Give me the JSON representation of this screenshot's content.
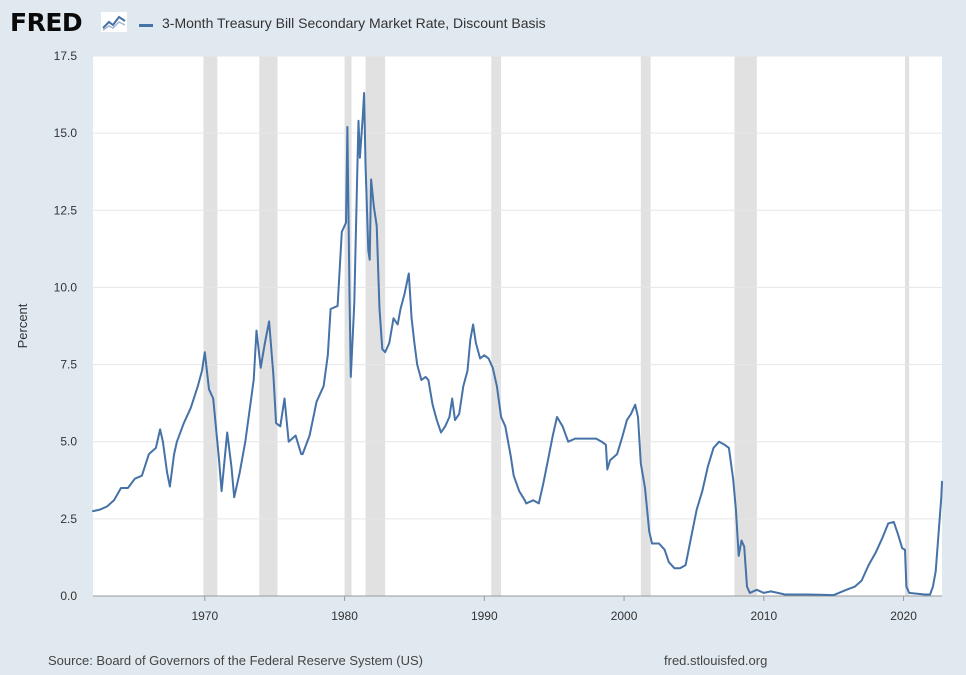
{
  "brand": {
    "logo_text": "FRED"
  },
  "legend": {
    "label": "3-Month Treasury Bill Secondary Market Rate, Discount Basis"
  },
  "footer": {
    "source": "Source: Board of Governors of the Federal Reserve System (US)",
    "url": "fred.stlouisfed.org"
  },
  "colors": {
    "page_background": "#e1e9f0",
    "plot_background": "#ffffff",
    "series": "#4572a7",
    "recession_band": "#e1e1e1",
    "gridline": "#e6e6e6"
  },
  "chart_data": {
    "type": "line",
    "title": "3-Month Treasury Bill Secondary Market Rate, Discount Basis",
    "xlabel": "",
    "ylabel": "Percent",
    "xlim": [
      1962.0,
      2022.75
    ],
    "ylim": [
      0,
      17.5
    ],
    "x_ticks": [
      1970,
      1980,
      1990,
      2000,
      2010,
      2020
    ],
    "y_ticks": [
      0.0,
      2.5,
      5.0,
      7.5,
      10.0,
      12.5,
      15.0,
      17.5
    ],
    "y_tick_labels": [
      "0.0",
      "2.5",
      "5.0",
      "7.5",
      "10.0",
      "12.5",
      "15.0",
      "17.5"
    ],
    "grid": "horizontal",
    "recessions": [
      [
        1969.9,
        1970.9
      ],
      [
        1973.9,
        1975.2
      ],
      [
        1980.0,
        1980.5
      ],
      [
        1981.5,
        1982.9
      ],
      [
        1990.5,
        1991.2
      ],
      [
        2001.2,
        2001.9
      ],
      [
        2007.9,
        2009.5
      ],
      [
        2020.1,
        2020.4
      ]
    ],
    "series": [
      {
        "name": "3-Month Treasury Bill Secondary Market Rate, Discount Basis",
        "points": [
          [
            1962.0,
            2.75
          ],
          [
            1962.5,
            2.8
          ],
          [
            1963.0,
            2.9
          ],
          [
            1963.5,
            3.1
          ],
          [
            1964.0,
            3.5
          ],
          [
            1964.5,
            3.5
          ],
          [
            1965.0,
            3.8
          ],
          [
            1965.5,
            3.9
          ],
          [
            1966.0,
            4.6
          ],
          [
            1966.5,
            4.8
          ],
          [
            1966.8,
            5.4
          ],
          [
            1967.0,
            5.0
          ],
          [
            1967.3,
            4.0
          ],
          [
            1967.5,
            3.55
          ],
          [
            1967.8,
            4.6
          ],
          [
            1968.0,
            5.0
          ],
          [
            1968.5,
            5.6
          ],
          [
            1969.0,
            6.1
          ],
          [
            1969.5,
            6.8
          ],
          [
            1969.8,
            7.3
          ],
          [
            1970.0,
            7.9
          ],
          [
            1970.3,
            6.7
          ],
          [
            1970.6,
            6.4
          ],
          [
            1971.0,
            4.5
          ],
          [
            1971.2,
            3.4
          ],
          [
            1971.6,
            5.3
          ],
          [
            1971.9,
            4.2
          ],
          [
            1972.1,
            3.2
          ],
          [
            1972.5,
            4.0
          ],
          [
            1972.9,
            5.0
          ],
          [
            1973.2,
            6.0
          ],
          [
            1973.5,
            7.0
          ],
          [
            1973.7,
            8.6
          ],
          [
            1974.0,
            7.4
          ],
          [
            1974.3,
            8.2
          ],
          [
            1974.6,
            8.9
          ],
          [
            1974.9,
            7.2
          ],
          [
            1975.1,
            5.6
          ],
          [
            1975.4,
            5.5
          ],
          [
            1975.7,
            6.4
          ],
          [
            1976.0,
            5.0
          ],
          [
            1976.5,
            5.2
          ],
          [
            1976.9,
            4.6
          ],
          [
            1977.0,
            4.6
          ],
          [
            1977.5,
            5.2
          ],
          [
            1978.0,
            6.3
          ],
          [
            1978.5,
            6.8
          ],
          [
            1978.8,
            7.8
          ],
          [
            1979.0,
            9.3
          ],
          [
            1979.5,
            9.4
          ],
          [
            1979.8,
            11.8
          ],
          [
            1980.1,
            12.1
          ],
          [
            1980.2,
            15.2
          ],
          [
            1980.35,
            10.0
          ],
          [
            1980.45,
            7.1
          ],
          [
            1980.7,
            9.5
          ],
          [
            1980.9,
            13.5
          ],
          [
            1981.0,
            15.4
          ],
          [
            1981.1,
            14.2
          ],
          [
            1981.3,
            15.5
          ],
          [
            1981.4,
            16.3
          ],
          [
            1981.5,
            14.0
          ],
          [
            1981.7,
            11.2
          ],
          [
            1981.8,
            10.9
          ],
          [
            1981.9,
            13.5
          ],
          [
            1982.1,
            12.6
          ],
          [
            1982.3,
            12.0
          ],
          [
            1982.5,
            9.3
          ],
          [
            1982.7,
            8.0
          ],
          [
            1982.9,
            7.9
          ],
          [
            1983.2,
            8.2
          ],
          [
            1983.5,
            9.0
          ],
          [
            1983.8,
            8.8
          ],
          [
            1984.0,
            9.3
          ],
          [
            1984.3,
            9.8
          ],
          [
            1984.6,
            10.45
          ],
          [
            1984.8,
            9.0
          ],
          [
            1985.0,
            8.2
          ],
          [
            1985.2,
            7.5
          ],
          [
            1985.5,
            7.0
          ],
          [
            1985.8,
            7.1
          ],
          [
            1986.0,
            7.0
          ],
          [
            1986.3,
            6.2
          ],
          [
            1986.6,
            5.7
          ],
          [
            1986.9,
            5.3
          ],
          [
            1987.2,
            5.5
          ],
          [
            1987.5,
            5.8
          ],
          [
            1987.7,
            6.4
          ],
          [
            1987.9,
            5.7
          ],
          [
            1988.2,
            5.9
          ],
          [
            1988.5,
            6.8
          ],
          [
            1988.8,
            7.3
          ],
          [
            1989.0,
            8.3
          ],
          [
            1989.2,
            8.8
          ],
          [
            1989.4,
            8.2
          ],
          [
            1989.7,
            7.7
          ],
          [
            1990.0,
            7.8
          ],
          [
            1990.3,
            7.7
          ],
          [
            1990.6,
            7.4
          ],
          [
            1990.9,
            6.8
          ],
          [
            1991.2,
            5.8
          ],
          [
            1991.5,
            5.5
          ],
          [
            1991.9,
            4.5
          ],
          [
            1992.1,
            3.9
          ],
          [
            1992.5,
            3.4
          ],
          [
            1992.9,
            3.1
          ],
          [
            1993.0,
            3.0
          ],
          [
            1993.5,
            3.1
          ],
          [
            1993.9,
            3.0
          ],
          [
            1994.2,
            3.6
          ],
          [
            1994.6,
            4.5
          ],
          [
            1994.9,
            5.2
          ],
          [
            1995.2,
            5.8
          ],
          [
            1995.6,
            5.5
          ],
          [
            1996.0,
            5.0
          ],
          [
            1996.5,
            5.1
          ],
          [
            1997.0,
            5.1
          ],
          [
            1997.5,
            5.1
          ],
          [
            1998.0,
            5.1
          ],
          [
            1998.4,
            5.0
          ],
          [
            1998.7,
            4.9
          ],
          [
            1998.8,
            4.1
          ],
          [
            1999.0,
            4.4
          ],
          [
            1999.5,
            4.6
          ],
          [
            1999.9,
            5.2
          ],
          [
            2000.2,
            5.7
          ],
          [
            2000.5,
            5.9
          ],
          [
            2000.8,
            6.2
          ],
          [
            2001.0,
            5.8
          ],
          [
            2001.2,
            4.3
          ],
          [
            2001.5,
            3.5
          ],
          [
            2001.8,
            2.1
          ],
          [
            2002.0,
            1.7
          ],
          [
            2002.5,
            1.7
          ],
          [
            2002.9,
            1.5
          ],
          [
            2003.2,
            1.1
          ],
          [
            2003.6,
            0.9
          ],
          [
            2004.0,
            0.9
          ],
          [
            2004.4,
            1.0
          ],
          [
            2004.8,
            1.9
          ],
          [
            2005.2,
            2.8
          ],
          [
            2005.6,
            3.4
          ],
          [
            2006.0,
            4.2
          ],
          [
            2006.4,
            4.8
          ],
          [
            2006.8,
            5.0
          ],
          [
            2007.2,
            4.9
          ],
          [
            2007.5,
            4.8
          ],
          [
            2007.8,
            3.8
          ],
          [
            2008.0,
            2.8
          ],
          [
            2008.2,
            1.3
          ],
          [
            2008.4,
            1.8
          ],
          [
            2008.6,
            1.6
          ],
          [
            2008.8,
            0.3
          ],
          [
            2009.0,
            0.1
          ],
          [
            2009.5,
            0.2
          ],
          [
            2010.0,
            0.1
          ],
          [
            2010.5,
            0.15
          ],
          [
            2011.0,
            0.1
          ],
          [
            2011.5,
            0.05
          ],
          [
            2012.0,
            0.05
          ],
          [
            2013.0,
            0.05
          ],
          [
            2014.0,
            0.04
          ],
          [
            2015.0,
            0.03
          ],
          [
            2015.9,
            0.2
          ],
          [
            2016.5,
            0.3
          ],
          [
            2017.0,
            0.5
          ],
          [
            2017.5,
            1.0
          ],
          [
            2018.0,
            1.4
          ],
          [
            2018.5,
            1.9
          ],
          [
            2018.9,
            2.35
          ],
          [
            2019.3,
            2.4
          ],
          [
            2019.6,
            2.0
          ],
          [
            2019.9,
            1.55
          ],
          [
            2020.1,
            1.5
          ],
          [
            2020.2,
            0.3
          ],
          [
            2020.4,
            0.1
          ],
          [
            2020.8,
            0.08
          ],
          [
            2021.0,
            0.07
          ],
          [
            2021.5,
            0.05
          ],
          [
            2021.9,
            0.05
          ],
          [
            2022.1,
            0.3
          ],
          [
            2022.3,
            0.8
          ],
          [
            2022.5,
            2.0
          ],
          [
            2022.7,
            3.2
          ],
          [
            2022.75,
            3.7
          ]
        ]
      }
    ]
  }
}
